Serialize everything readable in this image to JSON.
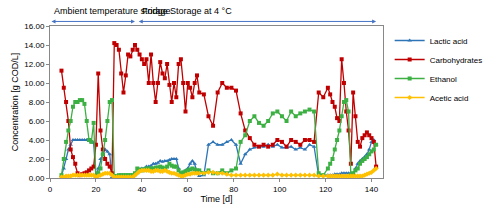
{
  "chart_data": {
    "type": "line",
    "x_label": "Time [d]",
    "y_label": "Concentration [g COD/L]",
    "annotations": [
      {
        "text": "Ambient temperature storage",
        "x": [
          0,
          37
        ]
      },
      {
        "text": "Fridge Storage at 4 °C",
        "x": [
          38,
          142
        ]
      }
    ],
    "x": [
      5,
      6,
      7,
      8,
      9,
      10,
      11,
      12,
      13,
      14,
      15,
      16,
      17,
      18,
      19,
      20,
      21,
      22,
      23,
      24,
      25,
      26,
      27,
      28,
      29,
      30,
      31,
      32,
      33,
      34,
      35,
      36,
      37,
      38,
      39,
      40,
      41,
      42,
      43,
      44,
      45,
      46,
      47,
      48,
      49,
      50,
      51,
      52,
      53,
      54,
      55,
      56,
      57,
      58,
      59,
      60,
      61,
      62,
      63,
      64,
      65,
      67,
      69,
      71,
      73,
      75,
      77,
      79,
      81,
      83,
      85,
      87,
      89,
      91,
      93,
      95,
      97,
      99,
      101,
      103,
      105,
      107,
      109,
      111,
      113,
      115,
      117,
      119,
      121,
      122,
      123,
      124,
      125,
      126,
      127,
      128,
      129,
      130,
      131,
      132,
      133,
      134,
      135,
      136,
      137,
      138,
      139,
      140,
      141,
      142
    ],
    "series": [
      {
        "name": "Lactic acid",
        "color": "#2e75b6",
        "marker": "triangle-up",
        "values": [
          0.2,
          1,
          2,
          3,
          3.5,
          4,
          4,
          4,
          4,
          4,
          4,
          4,
          3.9,
          3.8,
          3.7,
          0.1,
          1,
          2,
          2.6,
          3,
          2.8,
          2.5,
          0.1,
          0.1,
          0.1,
          0.1,
          0.1,
          0.1,
          0.1,
          0.1,
          0.1,
          0.1,
          0.3,
          0.5,
          0.8,
          1,
          1,
          1.2,
          1.2,
          1.3,
          1.5,
          1.5,
          1.6,
          1.8,
          1.7,
          1.8,
          1.8,
          1.9,
          2,
          2,
          2,
          1,
          0.2,
          0.5,
          0.8,
          1,
          1.5,
          1.8,
          1.5,
          0.5,
          0.2,
          0.3,
          3.5,
          3.8,
          3.5,
          3.5,
          3.8,
          4,
          3.5,
          1.5,
          2.5,
          3,
          3.2,
          3.3,
          3.3,
          3.5,
          3.3,
          3.5,
          3.2,
          3.2,
          3.3,
          3,
          3.2,
          3,
          3.5,
          3.3,
          0.2,
          0.3,
          0.3,
          0.3,
          0.3,
          0.4,
          0.4,
          0.4,
          0.5,
          0.5,
          0.5,
          0.5,
          0.5,
          0.5,
          1,
          1.5,
          1.8,
          2,
          2.2,
          2.5,
          3,
          3.8,
          4,
          3.5
        ]
      },
      {
        "name": "Carbohydrates",
        "color": "#c00000",
        "marker": "square",
        "values": [
          11.3,
          9.5,
          8,
          6,
          3,
          2.2,
          1.5,
          0.5,
          0.3,
          0.4,
          0.5,
          0.6,
          0.8,
          1,
          1.2,
          3.5,
          11,
          5,
          3,
          2,
          1.5,
          1.2,
          0.5,
          14.2,
          14,
          13.5,
          11,
          9,
          10.8,
          13,
          12.8,
          13.5,
          14,
          13.5,
          13,
          12.5,
          12,
          12.5,
          10,
          13,
          10,
          8,
          10,
          12.2,
          11,
          10.5,
          12,
          9.8,
          8,
          10,
          8.5,
          12,
          12.5,
          10,
          7,
          10,
          9.5,
          8.5,
          10,
          10.8,
          9,
          8.8,
          6.5,
          5.5,
          9,
          10,
          9.5,
          9.5,
          9.2,
          6.8,
          5,
          4.2,
          3.5,
          3.3,
          3.5,
          3.3,
          3.5,
          4,
          3.8,
          3.3,
          4,
          3.8,
          3.5,
          4,
          4,
          3.8,
          9,
          8.5,
          9.5,
          8.8,
          8,
          7.5,
          6.3,
          6,
          12.5,
          10,
          7,
          5,
          1.5,
          9,
          6.5,
          3.8,
          3.3,
          4.2,
          4.5,
          4.8,
          4.5,
          4.2,
          3.8,
          1.2
        ]
      },
      {
        "name": "Ethanol",
        "color": "#3cb043",
        "marker": "square",
        "values": [
          0.3,
          2,
          3.8,
          5,
          6,
          7.5,
          8,
          8,
          8.2,
          8.2,
          7.8,
          6,
          4,
          3.8,
          5.8,
          0.2,
          0.5,
          1,
          2.5,
          4,
          6,
          8,
          8.2,
          0.2,
          0.2,
          0.3,
          0.3,
          0.3,
          0.3,
          0.3,
          0.3,
          0.3,
          0.5,
          1,
          0.9,
          0.8,
          0.9,
          1,
          1,
          1,
          1,
          1.1,
          1.1,
          1.2,
          1.1,
          1,
          1.2,
          1.5,
          1.3,
          1.2,
          1.2,
          0.8,
          0.5,
          0.6,
          0.7,
          0.8,
          0.9,
          1,
          0.9,
          0.8,
          0.8,
          0.5,
          0.8,
          0.5,
          0.5,
          0.8,
          0.5,
          0.8,
          1,
          3.8,
          4.5,
          6,
          6.5,
          5.8,
          5.5,
          6,
          6.8,
          7,
          6.5,
          6,
          7,
          6.5,
          6.8,
          7,
          7.2,
          7,
          0.5,
          0.3,
          1,
          1.5,
          2,
          3,
          4,
          5,
          6.5,
          8,
          8.2,
          7,
          0.3,
          0.5,
          0.8,
          1,
          1.5,
          1.8,
          2,
          2.2,
          2.5,
          2.8,
          3,
          3.5
        ]
      },
      {
        "name": "Acetic acid",
        "color": "#ffc000",
        "marker": "diamond",
        "values": [
          0.1,
          0.1,
          0.2,
          0.2,
          0.2,
          0.3,
          0.3,
          0.3,
          0.3,
          0.3,
          0.3,
          0.3,
          0.3,
          0.3,
          0.3,
          0.1,
          0.2,
          0.3,
          0.4,
          0.5,
          0.5,
          0.5,
          0.3,
          0.1,
          0.1,
          0.1,
          0.1,
          0.1,
          0.1,
          0.1,
          0.1,
          0.1,
          0.3,
          0.5,
          0.7,
          0.8,
          0.8,
          0.8,
          0.8,
          0.7,
          0.7,
          0.8,
          0.8,
          0.7,
          0.7,
          0.8,
          0.7,
          0.6,
          0.5,
          0.5,
          0.4,
          0.3,
          0.2,
          0.2,
          0.3,
          0.4,
          0.4,
          0.5,
          0.5,
          0.5,
          0.5,
          0.5,
          0.6,
          0.6,
          0.5,
          0.5,
          0.4,
          0.3,
          0.3,
          0.3,
          0.3,
          0.3,
          0.3,
          0.3,
          0.3,
          0.3,
          0.3,
          0.4,
          0.3,
          0.3,
          0.3,
          0.3,
          0.3,
          0.3,
          0.3,
          0.3,
          0.2,
          0.2,
          0.2,
          0.2,
          0.2,
          0.2,
          0.2,
          0.2,
          0.2,
          0.2,
          0.2,
          0.2,
          0.2,
          0.2,
          0.2,
          0.2,
          0.2,
          0.2,
          0.3,
          0.4,
          0.5,
          0.6,
          0.8,
          1
        ]
      }
    ],
    "xlim": [
      0,
      145
    ],
    "xticks": [
      0,
      20,
      40,
      60,
      80,
      100,
      120,
      140
    ],
    "ylim": [
      0,
      16
    ],
    "yticks": [
      {
        "value": 0,
        "label": "0.00"
      },
      {
        "value": 2,
        "label": "2.00"
      },
      {
        "value": 4,
        "label": "4.00"
      },
      {
        "value": 6,
        "label": "6.00"
      },
      {
        "value": 8,
        "label": "8.00"
      },
      {
        "value": 10,
        "label": "10.00"
      },
      {
        "value": 12,
        "label": "12.00"
      },
      {
        "value": 14,
        "label": "14.00"
      },
      {
        "value": 16,
        "label": "16.00"
      }
    ],
    "grid": false,
    "legend": "right"
  }
}
